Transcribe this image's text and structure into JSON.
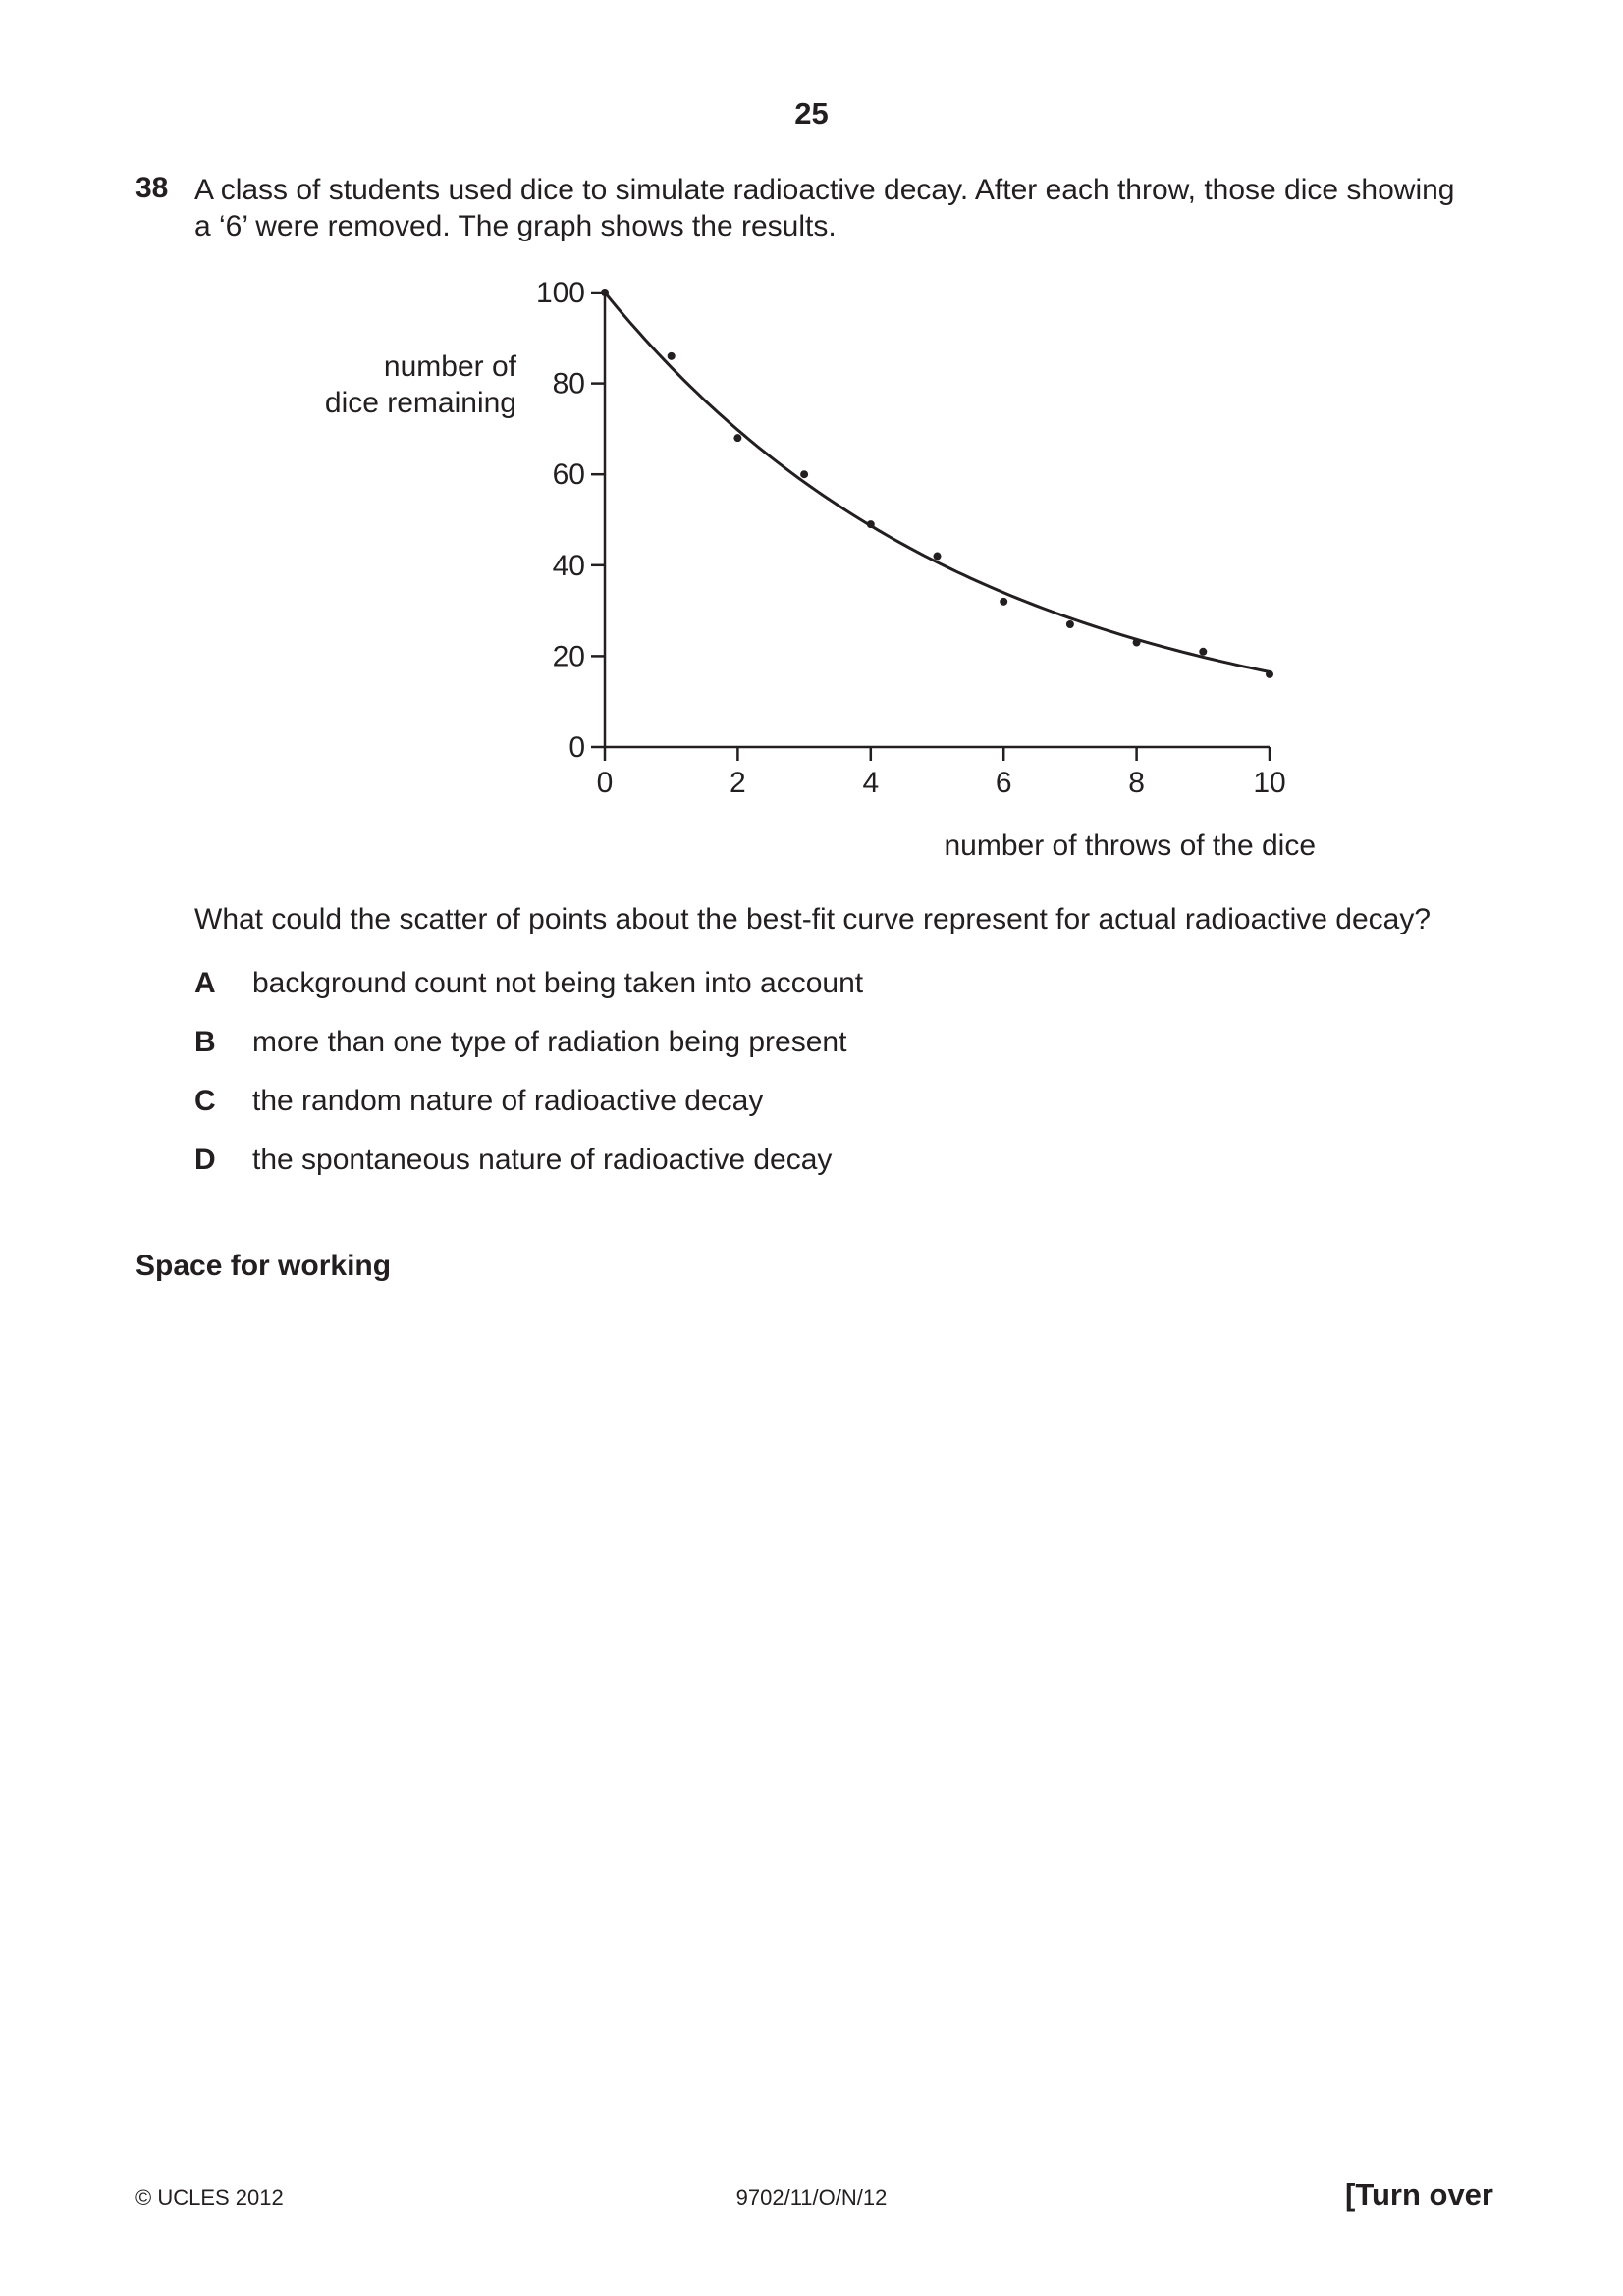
{
  "page_number": "25",
  "question": {
    "number": "38",
    "stem_line1": "A class of students used dice to simulate radioactive decay. After each throw, those dice showing",
    "stem_line2": "a ‘6’ were removed. The graph shows the results.",
    "prompt": "What could the scatter of points about the best-fit curve represent for actual radioactive decay?",
    "options": [
      {
        "letter": "A",
        "text": "background count not being taken into account"
      },
      {
        "letter": "B",
        "text": "more than one type of radiation being present"
      },
      {
        "letter": "C",
        "text": "the random nature of radioactive decay"
      },
      {
        "letter": "D",
        "text": "the spontaneous nature of radioactive decay"
      }
    ]
  },
  "chart_data": {
    "type": "scatter",
    "ylabel_line1": "number of",
    "ylabel_line2": "dice remaining",
    "xlabel": "number of throws of the dice",
    "xlim": [
      0,
      10
    ],
    "ylim": [
      0,
      100
    ],
    "x_ticks": [
      0,
      2,
      4,
      6,
      8,
      10
    ],
    "y_ticks": [
      0,
      20,
      40,
      60,
      80,
      100
    ],
    "points": [
      {
        "x": 0,
        "y": 100
      },
      {
        "x": 1,
        "y": 86
      },
      {
        "x": 2,
        "y": 68
      },
      {
        "x": 3,
        "y": 60
      },
      {
        "x": 4,
        "y": 49
      },
      {
        "x": 5,
        "y": 42
      },
      {
        "x": 6,
        "y": 32
      },
      {
        "x": 7,
        "y": 27
      },
      {
        "x": 8,
        "y": 23
      },
      {
        "x": 9,
        "y": 21
      },
      {
        "x": 10,
        "y": 16
      }
    ],
    "best_fit_curve": {
      "form": "exponential",
      "initial": 100,
      "decay_rate": 0.18
    },
    "grid": false
  },
  "space_label": "Space for working",
  "footer": {
    "left": "© UCLES 2012",
    "center": "9702/11/O/N/12",
    "right": "[Turn over"
  }
}
